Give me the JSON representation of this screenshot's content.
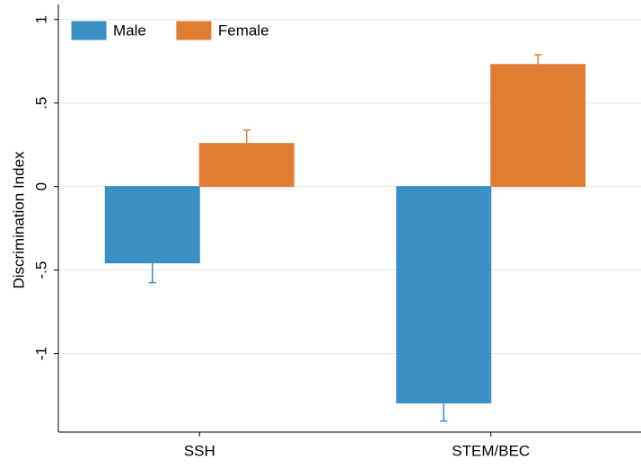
{
  "chart_data": {
    "type": "bar",
    "y_label": "Discrimination Index",
    "categories": [
      "SSH",
      "STEM/BEC"
    ],
    "series": [
      {
        "name": "Male",
        "color": "#3a8fc5",
        "values": [
          -0.457,
          -1.296
        ],
        "errors": [
          0.118,
          0.108
        ]
      },
      {
        "name": "Female",
        "color": "#e07d32",
        "values": [
          0.258,
          0.731
        ],
        "errors": [
          0.08,
          0.058
        ]
      }
    ],
    "ylim": [
      -1.47,
      1.09
    ],
    "yticks": [
      1,
      {
        "value": 0.5,
        "label": ".5"
      },
      0,
      {
        "value": -0.5,
        "label": "-.5"
      },
      -1
    ],
    "grid": true,
    "legend": "top-left"
  }
}
